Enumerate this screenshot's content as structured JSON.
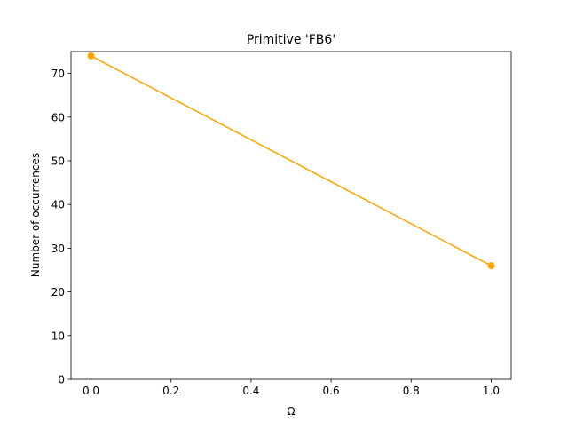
{
  "chart_data": {
    "type": "line",
    "title": "Primitive 'FB6'",
    "xlabel": "Ω",
    "ylabel": "Number of occurrences",
    "xlim": [
      -0.05,
      1.05
    ],
    "ylim": [
      0,
      75
    ],
    "xticks": [
      0.0,
      0.2,
      0.4,
      0.6,
      0.8,
      1.0
    ],
    "xtick_labels": [
      "0.0",
      "0.2",
      "0.4",
      "0.6",
      "0.8",
      "1.0"
    ],
    "yticks": [
      0,
      10,
      20,
      30,
      40,
      50,
      60,
      70
    ],
    "ytick_labels": [
      "0",
      "10",
      "20",
      "30",
      "40",
      "50",
      "60",
      "70"
    ],
    "grid": false,
    "legend": "none",
    "series": [
      {
        "x": [
          0.0,
          1.0
        ],
        "y": [
          74,
          26
        ],
        "color": "#ffa500",
        "marker": "circle"
      }
    ]
  }
}
